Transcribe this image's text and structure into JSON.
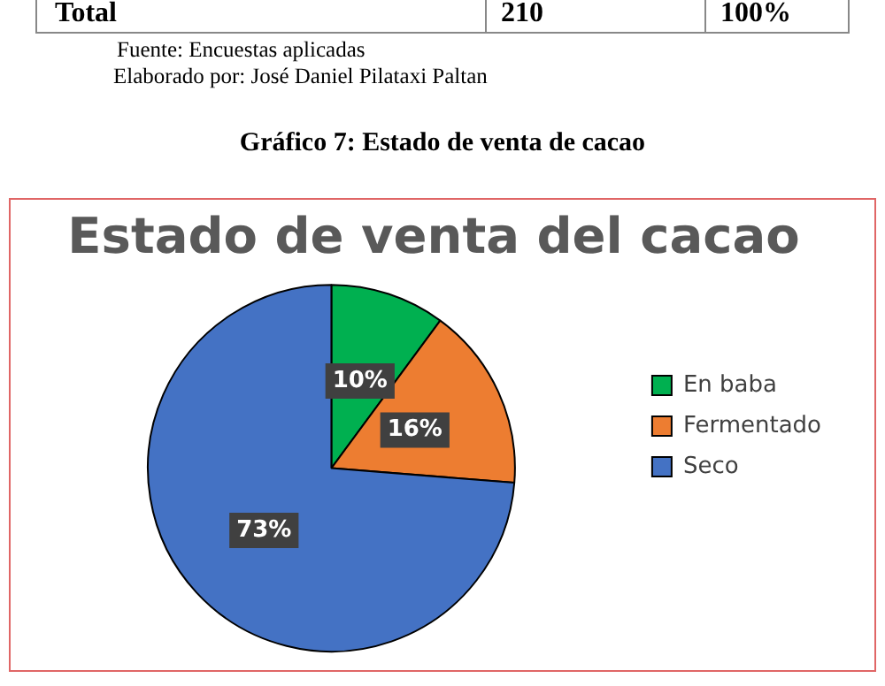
{
  "chart_data": {
    "type": "pie",
    "title": "Estado de venta del cacao",
    "subtitle": "Gráfico 7: Estado de venta de cacao",
    "annotations": [
      "Total",
      "210",
      "100%",
      "Fuente: Encuestas aplicadas",
      "Elaborado por: José Daniel Pilataxi Paltan"
    ],
    "categories": [
      "En baba",
      "Fermentado",
      "Seco"
    ],
    "values": [
      10,
      16,
      73
    ],
    "colors": [
      "#00b050",
      "#ed7d31",
      "#4472c4"
    ],
    "value_labels": [
      "10%",
      "16%",
      "73%"
    ],
    "legend": "right"
  }
}
